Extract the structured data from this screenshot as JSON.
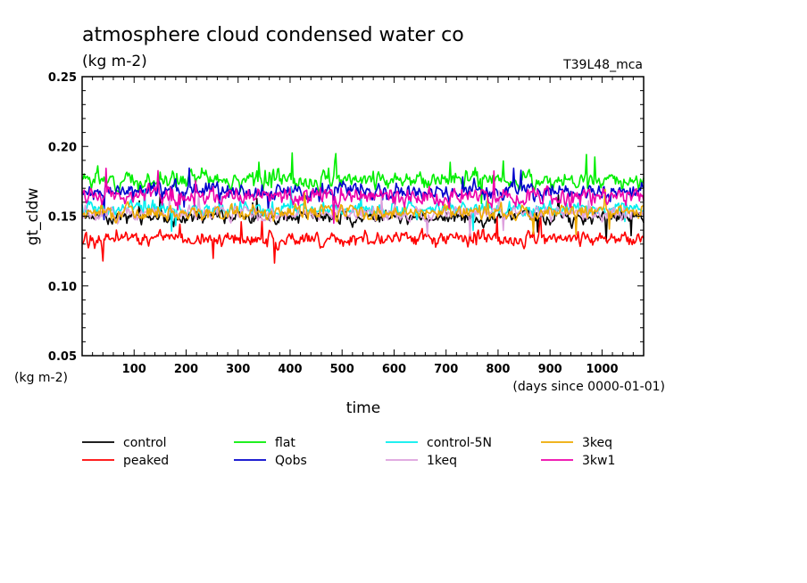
{
  "chart_data": {
    "type": "line",
    "title": "atmosphere cloud condensed water co",
    "units": "(kg m-2)",
    "run_label": "T39L48_mca",
    "xlabel": "time",
    "x_units": "(days since 0000-01-01)",
    "ylabel": "gt_cldw",
    "y_units": "(kg m-2)",
    "xlim": [
      0,
      1080
    ],
    "ylim": [
      0.05,
      0.25
    ],
    "x_ticks": [
      "100",
      "200",
      "300",
      "400",
      "500",
      "600",
      "700",
      "800",
      "900",
      "1000"
    ],
    "y_ticks": [
      "0.05",
      "0.10",
      "0.15",
      "0.20",
      "0.25"
    ],
    "series": [
      {
        "name": "control",
        "color": "#000000",
        "mean": 0.149,
        "amp": 0.008,
        "seed": 1
      },
      {
        "name": "peaked",
        "color": "#ff0000",
        "mean": 0.134,
        "amp": 0.008,
        "seed": 2
      },
      {
        "name": "flat",
        "color": "#00ee00",
        "mean": 0.176,
        "amp": 0.01,
        "seed": 3
      },
      {
        "name": "Qobs",
        "color": "#0000cc",
        "mean": 0.168,
        "amp": 0.009,
        "seed": 4
      },
      {
        "name": "control-5N",
        "color": "#00eeee",
        "mean": 0.155,
        "amp": 0.008,
        "seed": 5
      },
      {
        "name": "1keq",
        "color": "#dda0dd",
        "mean": 0.152,
        "amp": 0.008,
        "seed": 6
      },
      {
        "name": "3keq",
        "color": "#eeaa00",
        "mean": 0.153,
        "amp": 0.008,
        "seed": 7
      },
      {
        "name": "3kw1",
        "color": "#ee00aa",
        "mean": 0.164,
        "amp": 0.01,
        "seed": 8
      }
    ]
  }
}
